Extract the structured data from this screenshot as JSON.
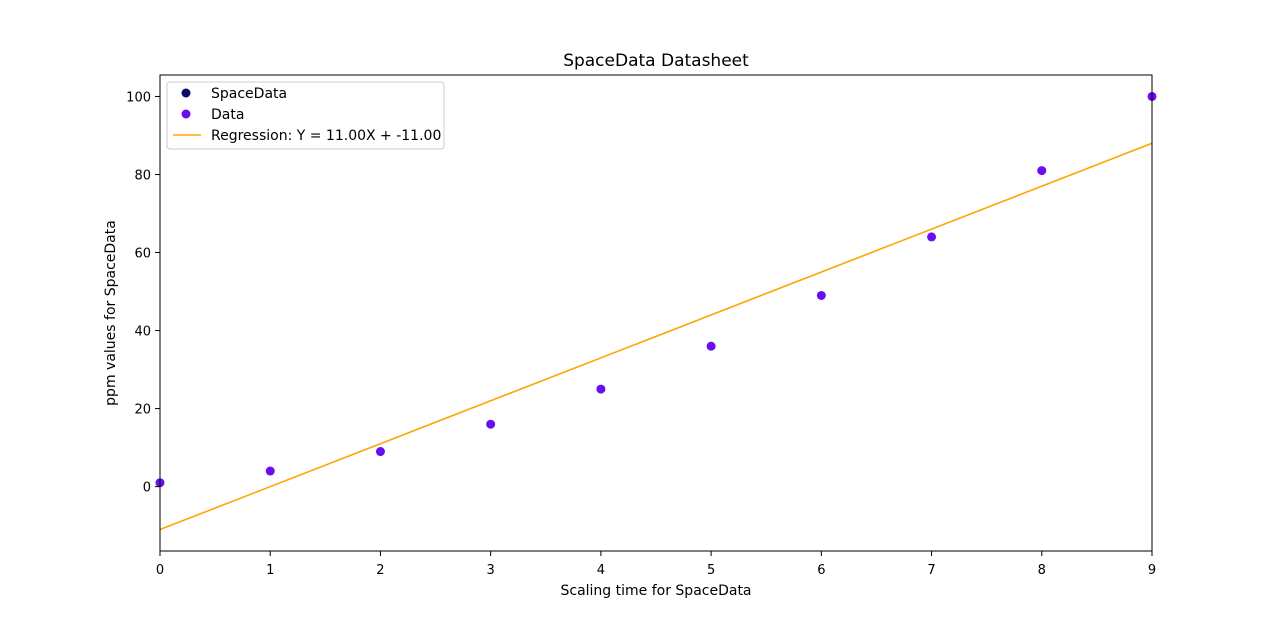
{
  "chart_data": {
    "type": "scatter",
    "title": "SpaceData Datasheet",
    "xlabel": "Scaling time for SpaceData",
    "ylabel": "ppm values for SpaceData",
    "xlim": [
      0,
      9
    ],
    "ylim": [
      -16.5,
      105.5
    ],
    "xticks": [
      0,
      1,
      2,
      3,
      4,
      5,
      6,
      7,
      8,
      9
    ],
    "yticks": [
      0,
      20,
      40,
      60,
      80,
      100
    ],
    "grid": false,
    "legend_position": "top-left",
    "series": [
      {
        "name": "SpaceData",
        "kind": "scatter",
        "color": "#0b0c66",
        "x": [],
        "y": []
      },
      {
        "name": "Data",
        "kind": "scatter",
        "color": "#6a0df0",
        "x": [
          0,
          1,
          2,
          3,
          4,
          5,
          6,
          7,
          8,
          9
        ],
        "y": [
          1,
          4,
          9,
          16,
          25,
          36,
          49,
          64,
          81,
          100
        ]
      },
      {
        "name": "Regression: Y = 11.00X + -11.00",
        "kind": "line",
        "color": "#ffa500",
        "slope": 11.0,
        "intercept": -11.0,
        "x": [
          0,
          9
        ],
        "y": [
          -11,
          88
        ]
      }
    ]
  }
}
